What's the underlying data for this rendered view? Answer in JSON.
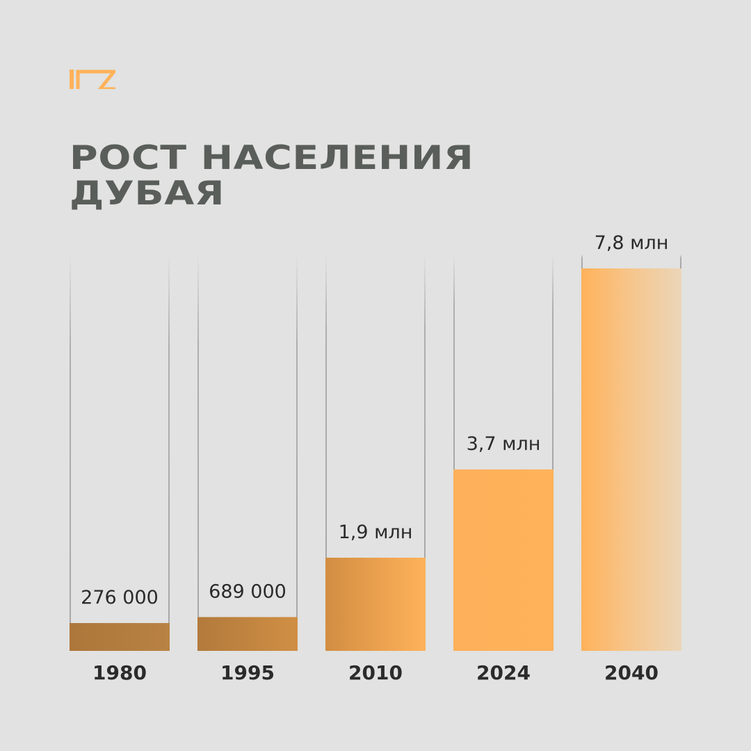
{
  "title": {
    "line1": "РОСТ НАСЕЛЕНИЯ",
    "line2": "ДУБАЯ"
  },
  "colors": {
    "background": "#e1e2e1",
    "title": "#5a5e5b",
    "accent": "#ffb25a",
    "bar_dark": "#b07a3c",
    "bar_light": "#ffb25a",
    "bar_fade": "#ecd6b8",
    "track_line": "#a8a8a8"
  },
  "icons": {
    "logo": "brand-logo-icon"
  },
  "chart_data": {
    "type": "bar",
    "categories": [
      "1980",
      "1995",
      "2010",
      "2024",
      "2040"
    ],
    "values": [
      276000,
      689000,
      1900000,
      3700000,
      7800000
    ],
    "value_labels": [
      "276 000",
      "689 000",
      "1,9 млн",
      "3,7 млн",
      "7,8 млн"
    ],
    "title": "РОСТ НАСЕЛЕНИЯ ДУБАЯ",
    "xlabel": "",
    "ylabel": "",
    "grid": false,
    "legend": "none"
  }
}
